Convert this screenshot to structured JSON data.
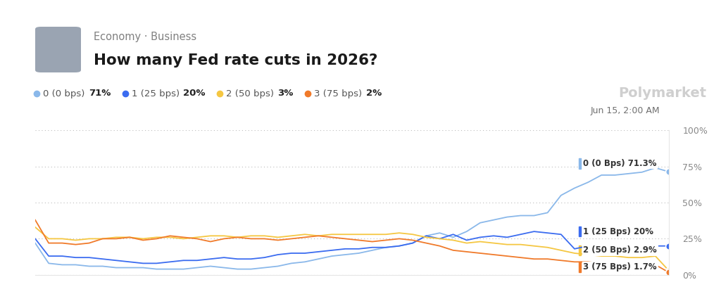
{
  "chart_data": {
    "type": "line",
    "category": "Economy · Business",
    "title": "How many Fed rate cuts in 2026?",
    "source": "Polymarket",
    "timestamp": "Jun 15, 2:00 AM",
    "x": [
      0,
      1,
      2,
      3,
      4,
      5,
      6,
      7,
      8,
      9,
      10,
      11,
      12,
      13,
      14,
      15,
      16,
      17,
      18,
      19,
      20,
      21,
      22,
      23,
      24,
      25,
      26,
      27,
      28,
      29,
      30,
      31,
      32,
      33,
      34,
      35,
      36,
      37,
      38,
      39,
      40,
      41,
      42,
      43,
      44,
      45,
      46,
      47
    ],
    "xlim": [
      0,
      47
    ],
    "ylim": [
      0,
      100
    ],
    "yticks": [
      {
        "value": 0,
        "label": "0%"
      },
      {
        "value": 25,
        "label": "25%"
      },
      {
        "value": 50,
        "label": "50%"
      },
      {
        "value": 75,
        "label": "75%"
      },
      {
        "value": 100,
        "label": "100%"
      }
    ],
    "grid": true,
    "tick_labels": "y",
    "series": [
      {
        "name": "0 (0 bps)",
        "legend_value_label": "71%",
        "end_label": "0 (0 Bps) 71.3%",
        "color": "#8ab8ea",
        "values": [
          22,
          8,
          7,
          7,
          6,
          6,
          5,
          5,
          5,
          4,
          4,
          4,
          5,
          6,
          5,
          4,
          4,
          5,
          6,
          8,
          9,
          11,
          13,
          14,
          15,
          17,
          19,
          20,
          22,
          27,
          29,
          26,
          30,
          36,
          38,
          40,
          41,
          41,
          43,
          55,
          60,
          64,
          69,
          69,
          70,
          71,
          74,
          71.3
        ]
      },
      {
        "name": "1 (25 bps)",
        "legend_value_label": "20%",
        "end_label": "1 (25 Bps) 20%",
        "color": "#3b6cf0",
        "values": [
          25,
          13,
          13,
          12,
          12,
          11,
          10,
          9,
          8,
          8,
          9,
          10,
          10,
          11,
          12,
          11,
          11,
          12,
          14,
          15,
          15,
          16,
          17,
          18,
          18,
          19,
          19,
          20,
          22,
          27,
          25,
          28,
          24,
          26,
          27,
          26,
          28,
          30,
          29,
          28,
          18,
          20,
          20,
          20,
          20,
          20,
          20,
          20
        ]
      },
      {
        "name": "2 (50 bps)",
        "legend_value_label": "3%",
        "end_label": "2 (50 Bps) 2.9%",
        "color": "#f5c742",
        "values": [
          33,
          25,
          25,
          24,
          25,
          25,
          26,
          26,
          25,
          26,
          26,
          25,
          26,
          27,
          27,
          26,
          27,
          27,
          26,
          27,
          28,
          27,
          28,
          28,
          28,
          28,
          28,
          29,
          28,
          26,
          25,
          24,
          22,
          23,
          22,
          21,
          21,
          20,
          19,
          17,
          15,
          14,
          13,
          13,
          12,
          12,
          13,
          2.9
        ]
      },
      {
        "name": "3 (75 bps)",
        "legend_value_label": "2%",
        "end_label": "3 (75 Bps) 1.7%",
        "color": "#f07a2a",
        "values": [
          38,
          22,
          22,
          21,
          22,
          25,
          25,
          26,
          24,
          25,
          27,
          26,
          25,
          23,
          25,
          26,
          25,
          25,
          24,
          25,
          26,
          27,
          26,
          25,
          24,
          23,
          24,
          25,
          24,
          22,
          20,
          17,
          16,
          15,
          14,
          13,
          12,
          11,
          11,
          10,
          9,
          9,
          8,
          8,
          8,
          7,
          7,
          1.7
        ]
      }
    ]
  }
}
